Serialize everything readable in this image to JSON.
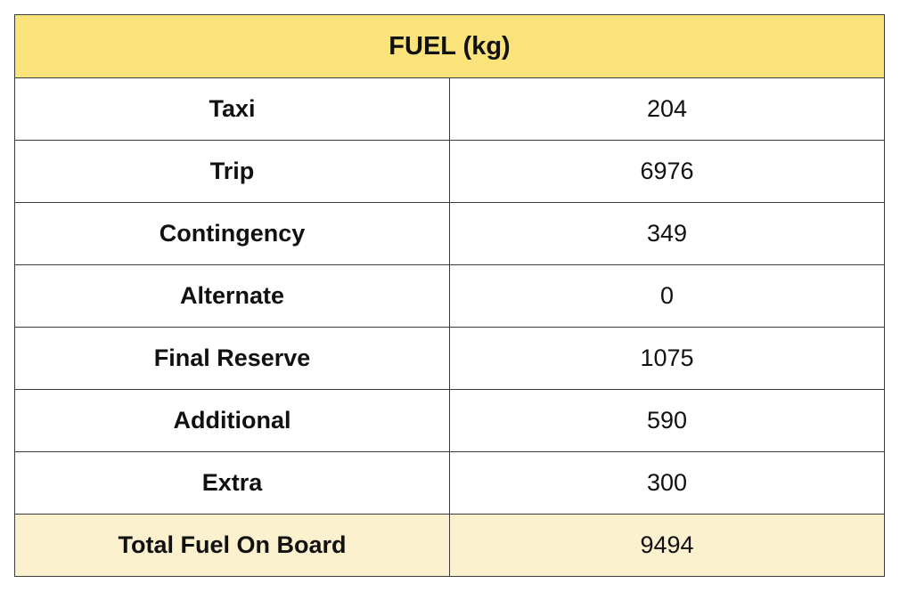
{
  "table": {
    "title": "FUEL (kg)",
    "rows": [
      {
        "label": "Taxi",
        "value": "204"
      },
      {
        "label": "Trip",
        "value": "6976"
      },
      {
        "label": "Contingency",
        "value": "349"
      },
      {
        "label": "Alternate",
        "value": "0"
      },
      {
        "label": "Final Reserve",
        "value": "1075"
      },
      {
        "label": "Additional",
        "value": "590"
      },
      {
        "label": "Extra",
        "value": "300"
      }
    ],
    "total": {
      "label": "Total Fuel On Board",
      "value": "9494"
    }
  },
  "colors": {
    "header_background": "#fae37a",
    "total_background": "#fbf1cf",
    "border": "#3a3a3a"
  }
}
